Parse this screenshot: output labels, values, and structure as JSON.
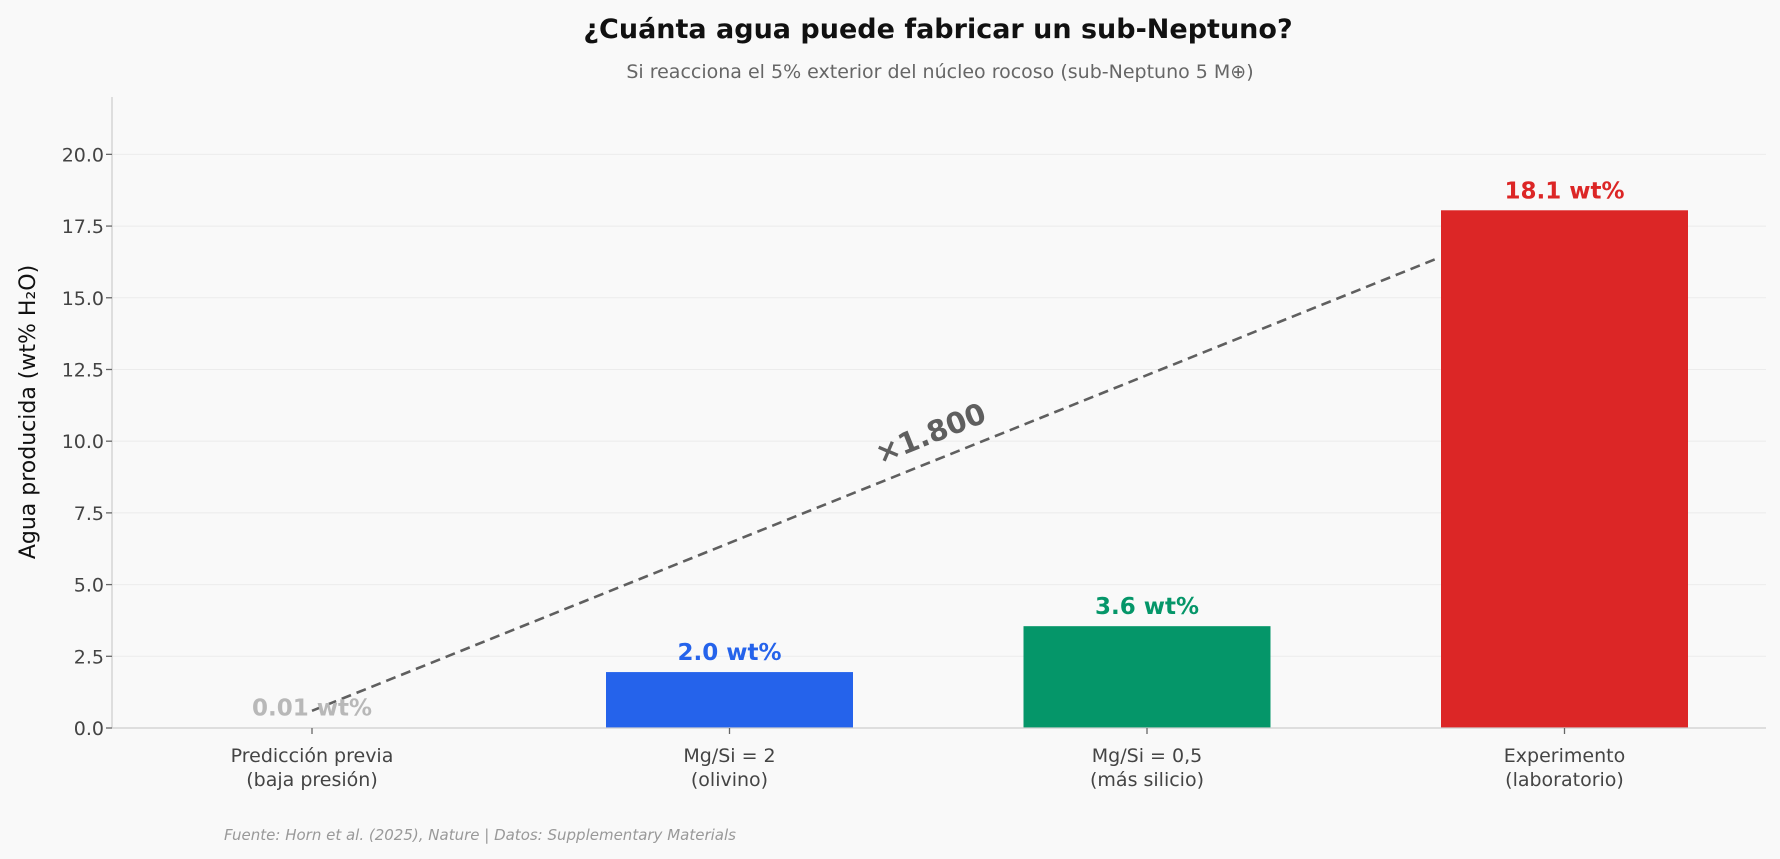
{
  "chart_data": {
    "type": "bar",
    "title": "¿Cuánta agua puede fabricar un sub-Neptuno?",
    "subtitle": "Si reacciona el 5% exterior del núcleo rocoso (sub-Neptuno 5 M⊕)",
    "ylabel": "Agua producida (wt% H₂O)",
    "ylim": [
      0,
      22
    ],
    "yticks": [
      0,
      2.5,
      5,
      7.5,
      10,
      12.5,
      15,
      17.5,
      20
    ],
    "ytick_labels": [
      "0.0",
      "2.5",
      "5.0",
      "7.5",
      "10.0",
      "12.5",
      "15.0",
      "17.5",
      "20.0"
    ],
    "grid": "horizontal",
    "categories": [
      [
        "Predicción previa",
        "(baja presión)"
      ],
      [
        "Mg/Si = 2",
        "(olivino)"
      ],
      [
        "Mg/Si = 0,5",
        "(más silicio)"
      ],
      [
        "Experimento",
        "(laboratorio)"
      ]
    ],
    "values": [
      0.01,
      1.95,
      3.55,
      18.05
    ],
    "value_labels": [
      "0.01 wt%",
      "2.0 wt%",
      "3.6 wt%",
      "18.1 wt%"
    ],
    "colors": [
      "#c0c0c0",
      "#2563eb",
      "#059669",
      "#dc2626"
    ],
    "label_colors": [
      "#b8b8b8",
      "#2563eb",
      "#059669",
      "#dc2626"
    ],
    "annotation": {
      "text": "×1.800",
      "from": {
        "category": 0,
        "value": 0.6
      },
      "to": {
        "category": 2.7,
        "value": 16.4
      },
      "color": "#5f5f5f",
      "style": "dashed"
    },
    "source": "Fuente: Horn et al. (2025), Nature | Datos: Supplementary Materials"
  }
}
